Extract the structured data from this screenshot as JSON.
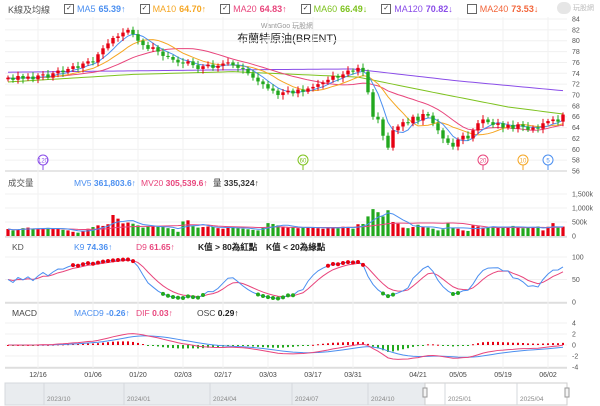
{
  "header": {
    "title": "K線及均線",
    "logo": "玩股網",
    "watermark": "WantGoo 玩股網",
    "chart_title": "布蘭特原油(BRENT)"
  },
  "ma_legend": [
    {
      "label": "MA5",
      "value": "65.39↑",
      "color": "#4b8ff0",
      "checked": true
    },
    {
      "label": "MA10",
      "value": "64.70↑",
      "color": "#f5a623",
      "checked": true
    },
    {
      "label": "MA20",
      "value": "64.83↑",
      "color": "#e8457c",
      "checked": true
    },
    {
      "label": "MA60",
      "value": "66.49↓",
      "color": "#7dc21e",
      "checked": true
    },
    {
      "label": "MA120",
      "value": "70.82↓",
      "color": "#8a4de8",
      "checked": true
    },
    {
      "label": "MA240",
      "value": "73.53↓",
      "color": "#f2653a",
      "checked": false
    }
  ],
  "volume_legend": {
    "title": "成交量",
    "mv5_label": "MV5",
    "mv5": "361,803.6↑",
    "mv20_label": "MV20",
    "mv20": "305,539.6↑",
    "vol_label": "量",
    "vol": "335,324↑"
  },
  "kd_legend": {
    "title": "KD",
    "k_label": "K9",
    "k": "74.36↑",
    "d_label": "D9",
    "d": "61.65↑",
    "note1": "K值 > 80為紅點",
    "note2": "K值 < 20為綠點"
  },
  "macd_legend": {
    "title": "MACD",
    "macd_label": "MACD9",
    "macd": "-0.26↑",
    "dif_label": "DIF",
    "dif": "0.03↑",
    "osc_label": "OSC",
    "osc": "0.29↑"
  },
  "colors": {
    "up": "#e60012",
    "down": "#22a81e",
    "grid": "#ececec"
  },
  "chart_data": {
    "type": "candlestick",
    "price_axis": {
      "ticks": [
        "84",
        "82",
        "80",
        "78",
        "76",
        "74",
        "72",
        "70",
        "68",
        "66",
        "64",
        "62",
        "60",
        "58",
        "56"
      ],
      "range": [
        56,
        84
      ]
    },
    "volume_axis": {
      "ticks": [
        "1,500k",
        "1,000k",
        "500k",
        "0"
      ],
      "range": [
        0,
        1500
      ]
    },
    "kd_axis": {
      "ticks": [
        "100",
        "50",
        "0"
      ],
      "range": [
        0,
        100
      ]
    },
    "macd_axis": {
      "ticks": [
        "4",
        "2",
        "0",
        "-2",
        "-4"
      ],
      "range": [
        -4,
        4
      ]
    },
    "dates": [
      {
        "label": "12/16",
        "index": 6
      },
      {
        "label": "01/06",
        "index": 17
      },
      {
        "label": "01/20",
        "index": 26
      },
      {
        "label": "02/03",
        "index": 35
      },
      {
        "label": "02/17",
        "index": 43
      },
      {
        "label": "03/03",
        "index": 52
      },
      {
        "label": "03/17",
        "index": 61
      },
      {
        "label": "03/31",
        "index": 69
      },
      {
        "label": "04/21",
        "index": 82
      },
      {
        "label": "05/05",
        "index": 90
      },
      {
        "label": "05/19",
        "index": 99
      },
      {
        "label": "06/02",
        "index": 108
      }
    ],
    "close": [
      73.2,
      72.8,
      73.5,
      73.0,
      73.4,
      72.9,
      73.6,
      73.8,
      73.2,
      74.0,
      74.5,
      74.2,
      74.8,
      75.3,
      75.0,
      75.8,
      76.2,
      76.0,
      77.5,
      78.6,
      79.5,
      80.5,
      80.8,
      81.5,
      82.0,
      81.2,
      80.0,
      79.2,
      78.5,
      78.8,
      78.0,
      77.2,
      77.0,
      76.5,
      76.0,
      75.8,
      76.2,
      75.5,
      74.8,
      75.3,
      75.6,
      75.0,
      75.4,
      75.8,
      76.0,
      75.5,
      75.0,
      74.8,
      74.0,
      73.2,
      72.5,
      72.0,
      71.2,
      70.8,
      70.0,
      70.5,
      70.8,
      70.3,
      71.0,
      70.6,
      71.2,
      71.5,
      72.0,
      72.3,
      72.8,
      73.5,
      73.2,
      73.8,
      74.5,
      74.3,
      75.0,
      74.3,
      70.5,
      66.0,
      65.5,
      62.5,
      60.3,
      63.5,
      64.2,
      65.0,
      64.8,
      66.0,
      65.3,
      66.5,
      66.2,
      64.8,
      63.5,
      62.0,
      61.2,
      60.5,
      61.8,
      62.5,
      62.0,
      63.5,
      64.8,
      65.5,
      65.0,
      64.5,
      64.8,
      64.0,
      64.5,
      63.8,
      64.6,
      64.2,
      63.6,
      64.0,
      63.8,
      64.8,
      65.2,
      65.5,
      65.1,
      66.4
    ],
    "volume_k": [
      250,
      200,
      230,
      280,
      300,
      260,
      240,
      270,
      290,
      280,
      250,
      220,
      200,
      150,
      120,
      180,
      260,
      320,
      380,
      360,
      420,
      750,
      620,
      450,
      480,
      440,
      380,
      300,
      340,
      360,
      330,
      320,
      280,
      250,
      150,
      520,
      560,
      350,
      300,
      320,
      340,
      330,
      280,
      260,
      300,
      320,
      280,
      260,
      240,
      220,
      200,
      300,
      460,
      430,
      380,
      340,
      300,
      320,
      280,
      310,
      320,
      300,
      280,
      260,
      300,
      320,
      280,
      330,
      300,
      260,
      420,
      430,
      700,
      960,
      850,
      700,
      920,
      500,
      440,
      300,
      280,
      320,
      400,
      320,
      300,
      260,
      200,
      240,
      460,
      300,
      260,
      200,
      180,
      380,
      340,
      300,
      320,
      330,
      310,
      340,
      300,
      360,
      320,
      280,
      300,
      320,
      340,
      200,
      330,
      460,
      300,
      336
    ],
    "ma60_anchors": [
      [
        0,
        72.4
      ],
      [
        25,
        73.8
      ],
      [
        45,
        74.3
      ],
      [
        70,
        73.3
      ],
      [
        85,
        70.5
      ],
      [
        100,
        67.8
      ],
      [
        111,
        66.5
      ]
    ],
    "ma120_anchors": [
      [
        0,
        74.2
      ],
      [
        40,
        74.6
      ],
      [
        69,
        74.8
      ],
      [
        90,
        72.6
      ],
      [
        111,
        70.8
      ]
    ],
    "ma_markers": [
      {
        "label": "120",
        "index": 7,
        "color": "#8a4de8"
      },
      {
        "label": "60",
        "index": 59,
        "color": "#7dc21e"
      },
      {
        "label": "20",
        "index": 95,
        "color": "#e8457c"
      },
      {
        "label": "10",
        "index": 103,
        "color": "#f5a623"
      },
      {
        "label": "5",
        "index": 108,
        "color": "#4b8ff0"
      }
    ]
  },
  "navigator": {
    "labels": [
      "2023/10",
      "2024/01",
      "2024/04",
      "2024/07",
      "2024/10",
      "2025/01",
      "2025/04"
    ]
  }
}
